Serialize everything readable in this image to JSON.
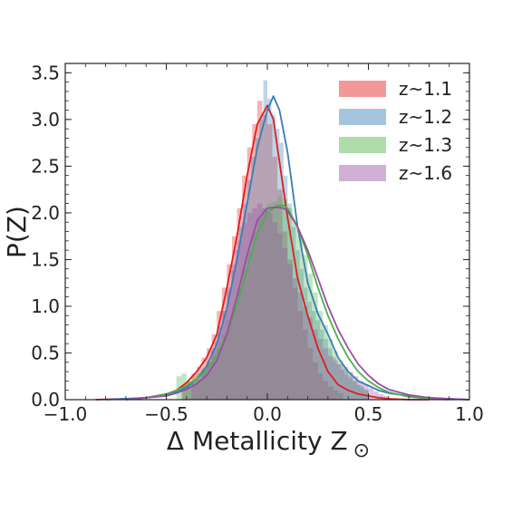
{
  "chart_data": {
    "type": "area",
    "xlabel": "Δ Metallicity Z",
    "xlabel_symbol": "⊙",
    "ylabel": "P(Z)",
    "xlim": [
      -1.0,
      1.0
    ],
    "ylim": [
      0.0,
      3.6
    ],
    "x_ticks": [
      -1.0,
      -0.5,
      0.0,
      0.5,
      1.0
    ],
    "x_tick_labels": [
      "−1.0",
      "−0.5",
      "0.0",
      "0.5",
      "1.0"
    ],
    "y_ticks": [
      0.0,
      0.5,
      1.0,
      1.5,
      2.0,
      2.5,
      3.0,
      3.5
    ],
    "y_tick_labels": [
      "0.0",
      "0.5",
      "1.0",
      "1.5",
      "2.0",
      "2.5",
      "3.0",
      "3.5"
    ],
    "grid": false,
    "legend_position": "top-right",
    "colors": {
      "z~1.1": "#e41a1c",
      "z~1.2": "#377eb8",
      "z~1.3": "#4daf4a",
      "z~1.6": "#984ea3"
    },
    "series": [
      {
        "name": "z~1.1",
        "kde": {
          "x": [
            -0.85,
            -0.7,
            -0.6,
            -0.5,
            -0.45,
            -0.4,
            -0.35,
            -0.3,
            -0.25,
            -0.2,
            -0.15,
            -0.1,
            -0.05,
            0.0,
            0.03,
            0.05,
            0.1,
            0.15,
            0.2,
            0.25,
            0.3,
            0.35,
            0.4,
            0.45,
            0.5,
            0.55,
            0.6,
            0.7,
            0.8
          ],
          "y": [
            0.0,
            0.01,
            0.02,
            0.06,
            0.1,
            0.18,
            0.3,
            0.45,
            0.7,
            1.2,
            1.75,
            2.4,
            2.95,
            3.15,
            3.0,
            2.7,
            1.95,
            1.3,
            0.9,
            0.55,
            0.3,
            0.16,
            0.1,
            0.06,
            0.04,
            0.02,
            0.01,
            0.0,
            0.0
          ]
        },
        "hist": {
          "bin_width": 0.025,
          "centers": [
            -0.4125,
            -0.3875,
            -0.3625,
            -0.3375,
            -0.3125,
            -0.2875,
            -0.2625,
            -0.2375,
            -0.2125,
            -0.1875,
            -0.1625,
            -0.1375,
            -0.1125,
            -0.0875,
            -0.0625,
            -0.0375,
            -0.0125,
            0.0125,
            0.0375,
            0.0625,
            0.0875,
            0.1125,
            0.1375,
            0.1625,
            0.1875,
            0.2125,
            0.2375,
            0.2625,
            0.2875,
            0.3125,
            0.3375,
            0.3625
          ],
          "values": [
            0.15,
            0.2,
            0.28,
            0.35,
            0.45,
            0.55,
            0.7,
            0.95,
            1.2,
            1.45,
            1.75,
            2.05,
            2.4,
            2.7,
            2.95,
            3.2,
            3.05,
            2.95,
            2.6,
            2.25,
            1.8,
            1.5,
            1.2,
            0.95,
            0.75,
            0.55,
            0.4,
            0.28,
            0.2,
            0.14,
            0.1,
            0.07
          ]
        }
      },
      {
        "name": "z~1.2",
        "kde": {
          "x": [
            -0.8,
            -0.6,
            -0.5,
            -0.45,
            -0.4,
            -0.35,
            -0.3,
            -0.25,
            -0.2,
            -0.15,
            -0.1,
            -0.05,
            0.0,
            0.03,
            0.06,
            0.1,
            0.15,
            0.2,
            0.25,
            0.3,
            0.35,
            0.4,
            0.45,
            0.5,
            0.55,
            0.6,
            0.7,
            0.8,
            0.9,
            1.0
          ],
          "y": [
            0.0,
            0.02,
            0.05,
            0.08,
            0.13,
            0.22,
            0.36,
            0.6,
            0.98,
            1.5,
            2.1,
            2.7,
            3.1,
            3.25,
            3.1,
            2.65,
            1.85,
            1.25,
            0.92,
            0.7,
            0.45,
            0.3,
            0.2,
            0.15,
            0.1,
            0.07,
            0.04,
            0.02,
            0.01,
            0.0
          ]
        },
        "hist": {
          "bin_width": 0.02,
          "centers": [
            -0.41,
            -0.39,
            -0.37,
            -0.35,
            -0.33,
            -0.31,
            -0.29,
            -0.27,
            -0.25,
            -0.23,
            -0.21,
            -0.19,
            -0.17,
            -0.15,
            -0.13,
            -0.11,
            -0.09,
            -0.07,
            -0.05,
            -0.03,
            -0.01,
            0.01,
            0.03,
            0.05,
            0.07,
            0.09,
            0.11,
            0.13,
            0.15,
            0.17,
            0.19,
            0.21,
            0.23,
            0.25,
            0.27,
            0.29,
            0.31,
            0.33,
            0.35,
            0.37,
            0.39,
            0.41,
            0.43,
            0.45,
            0.47,
            0.49
          ],
          "values": [
            0.12,
            0.15,
            0.18,
            0.22,
            0.28,
            0.34,
            0.42,
            0.52,
            0.62,
            0.78,
            0.95,
            1.15,
            1.38,
            1.6,
            1.85,
            2.1,
            2.35,
            2.6,
            2.8,
            3.0,
            3.42,
            3.22,
            3.05,
            2.9,
            2.75,
            2.4,
            2.1,
            1.85,
            1.6,
            1.4,
            1.2,
            1.05,
            0.95,
            0.85,
            0.75,
            0.65,
            0.55,
            0.45,
            0.38,
            0.32,
            0.27,
            0.23,
            0.2,
            0.16,
            0.13,
            0.1
          ]
        }
      },
      {
        "name": "z~1.3",
        "kde": {
          "x": [
            -0.7,
            -0.6,
            -0.5,
            -0.45,
            -0.4,
            -0.35,
            -0.3,
            -0.25,
            -0.2,
            -0.15,
            -0.1,
            -0.05,
            0.0,
            0.05,
            0.08,
            0.1,
            0.15,
            0.2,
            0.25,
            0.3,
            0.35,
            0.4,
            0.45,
            0.5,
            0.55,
            0.6,
            0.7,
            0.8,
            0.9
          ],
          "y": [
            0.0,
            0.02,
            0.06,
            0.1,
            0.15,
            0.22,
            0.32,
            0.48,
            0.7,
            1.02,
            1.4,
            1.78,
            2.0,
            2.08,
            2.08,
            2.05,
            1.85,
            1.55,
            1.2,
            0.9,
            0.65,
            0.45,
            0.3,
            0.2,
            0.13,
            0.08,
            0.03,
            0.01,
            0.0
          ]
        },
        "hist": {
          "bin_width": 0.025,
          "centers": [
            -0.4375,
            -0.4125,
            -0.3875,
            -0.3625,
            -0.3375,
            -0.3125,
            -0.2875,
            -0.2625,
            -0.2375,
            -0.2125,
            -0.1875,
            -0.1625,
            -0.1375,
            -0.1125,
            -0.0875,
            -0.0625,
            -0.0375,
            -0.0125,
            0.0125,
            0.0375,
            0.0625,
            0.0875,
            0.1125,
            0.1375,
            0.1625,
            0.1875,
            0.2125,
            0.2375,
            0.2625,
            0.2875,
            0.3125,
            0.3375,
            0.3625,
            0.3875,
            0.4125,
            0.4375,
            0.4625,
            0.4875
          ],
          "values": [
            0.25,
            0.28,
            0.2,
            0.25,
            0.28,
            0.32,
            0.38,
            0.45,
            0.55,
            0.7,
            0.85,
            1.0,
            1.2,
            1.4,
            1.6,
            1.8,
            1.95,
            2.05,
            2.1,
            2.12,
            2.18,
            2.15,
            2.05,
            1.9,
            1.75,
            1.55,
            1.35,
            1.15,
            0.95,
            0.8,
            0.65,
            0.52,
            0.42,
            0.33,
            0.26,
            0.2,
            0.15,
            0.11
          ]
        }
      },
      {
        "name": "z~1.6",
        "kde": {
          "x": [
            -0.7,
            -0.5,
            -0.45,
            -0.4,
            -0.35,
            -0.3,
            -0.25,
            -0.2,
            -0.15,
            -0.1,
            -0.05,
            0.0,
            0.05,
            0.08,
            0.1,
            0.15,
            0.2,
            0.25,
            0.3,
            0.35,
            0.4,
            0.45,
            0.5,
            0.55,
            0.6,
            0.7,
            0.8,
            0.9,
            1.0
          ],
          "y": [
            0.0,
            0.04,
            0.07,
            0.11,
            0.17,
            0.26,
            0.42,
            0.7,
            1.1,
            1.55,
            1.92,
            2.05,
            2.06,
            2.05,
            2.02,
            1.85,
            1.6,
            1.3,
            1.0,
            0.75,
            0.55,
            0.38,
            0.26,
            0.17,
            0.11,
            0.05,
            0.02,
            0.01,
            0.0
          ]
        },
        "hist": {
          "bin_width": 0.025,
          "centers": [
            -0.3625,
            -0.3375,
            -0.3125,
            -0.2875,
            -0.2625,
            -0.2375,
            -0.2125,
            -0.1875,
            -0.1625,
            -0.1375,
            -0.1125,
            -0.0875,
            -0.0625,
            -0.0375,
            -0.0125,
            0.0125,
            0.0375,
            0.0625,
            0.0875,
            0.1125,
            0.1375,
            0.1625,
            0.1875,
            0.2125,
            0.2375,
            0.2625,
            0.2875,
            0.3125,
            0.3375,
            0.3625,
            0.3875,
            0.4125,
            0.4375,
            0.4625,
            0.4875,
            0.5125,
            0.5375,
            0.5625,
            0.5875
          ],
          "values": [
            0.18,
            0.22,
            0.3,
            0.4,
            0.55,
            0.72,
            0.95,
            1.2,
            1.45,
            1.7,
            1.9,
            2.0,
            2.05,
            2.1,
            2.05,
            2.0,
            1.9,
            1.78,
            1.62,
            1.45,
            1.3,
            1.15,
            1.0,
            0.88,
            0.75,
            0.65,
            0.55,
            0.47,
            0.42,
            0.38,
            0.35,
            0.3,
            0.25,
            0.2,
            0.16,
            0.12,
            0.09,
            0.06,
            0.04
          ]
        }
      }
    ]
  }
}
